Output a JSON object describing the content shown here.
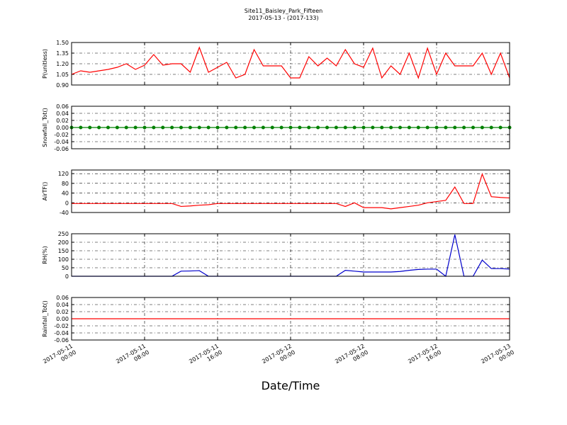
{
  "chart_data": {
    "type": "line",
    "title": "Site11_Baisley_Park_Fifteen",
    "subtitle": "2017-05-13 - (2017-133)",
    "x_label": "Date/Time",
    "x": [
      "2017-05-11 00:00",
      "2017-05-11 01:00",
      "2017-05-11 02:00",
      "2017-05-11 03:00",
      "2017-05-11 04:00",
      "2017-05-11 05:00",
      "2017-05-11 06:00",
      "2017-05-11 07:00",
      "2017-05-11 08:00",
      "2017-05-11 09:00",
      "2017-05-11 10:00",
      "2017-05-11 11:00",
      "2017-05-11 12:00",
      "2017-05-11 13:00",
      "2017-05-11 14:00",
      "2017-05-11 15:00",
      "2017-05-11 16:00",
      "2017-05-11 17:00",
      "2017-05-11 18:00",
      "2017-05-11 19:00",
      "2017-05-11 20:00",
      "2017-05-11 21:00",
      "2017-05-11 22:00",
      "2017-05-11 23:00",
      "2017-05-12 00:00",
      "2017-05-12 01:00",
      "2017-05-12 02:00",
      "2017-05-12 03:00",
      "2017-05-12 04:00",
      "2017-05-12 05:00",
      "2017-05-12 06:00",
      "2017-05-12 07:00",
      "2017-05-12 08:00",
      "2017-05-12 09:00",
      "2017-05-12 10:00",
      "2017-05-12 11:00",
      "2017-05-12 12:00",
      "2017-05-12 13:00",
      "2017-05-12 14:00",
      "2017-05-12 15:00",
      "2017-05-12 16:00",
      "2017-05-12 17:00",
      "2017-05-12 18:00",
      "2017-05-12 19:00",
      "2017-05-12 20:00",
      "2017-05-12 21:00",
      "2017-05-12 22:00",
      "2017-05-12 23:00",
      "2017-05-13 00:00"
    ],
    "xlim": [
      "2017-05-11 00:00",
      "2017-05-13 00:00"
    ],
    "xticks": [
      {
        "value": "2017-05-11 00:00",
        "label": "2017-05-11\n00:00"
      },
      {
        "value": "2017-05-11 08:00",
        "label": "2017-05-11\n08:00"
      },
      {
        "value": "2017-05-11 16:00",
        "label": "2017-05-11\n16:00"
      },
      {
        "value": "2017-05-12 00:00",
        "label": "2017-05-12\n00:00"
      },
      {
        "value": "2017-05-12 08:00",
        "label": "2017-05-12\n08:00"
      },
      {
        "value": "2017-05-12 16:00",
        "label": "2017-05-12\n16:00"
      },
      {
        "value": "2017-05-13 00:00",
        "label": "2017-05-13\n00:00"
      }
    ],
    "grid": true,
    "panels": [
      {
        "y_label": "P(unitless)",
        "color": "#ff0000",
        "marker": false,
        "ylim": [
          0.9,
          1.5
        ],
        "yticks": [
          {
            "value": 0.9,
            "label": "0.90"
          },
          {
            "value": 1.05,
            "label": "1.05"
          },
          {
            "value": 1.2,
            "label": "1.20"
          },
          {
            "value": 1.35,
            "label": "1.35"
          },
          {
            "value": 1.5,
            "label": "1.50"
          }
        ],
        "values": [
          1.05,
          1.1,
          1.08,
          1.1,
          1.12,
          1.15,
          1.2,
          1.12,
          1.18,
          1.33,
          1.18,
          1.2,
          1.2,
          1.08,
          1.43,
          1.08,
          1.15,
          1.22,
          1.0,
          1.05,
          1.4,
          1.17,
          1.17,
          1.17,
          1.0,
          1.0,
          1.3,
          1.17,
          1.28,
          1.17,
          1.4,
          1.2,
          1.15,
          1.42,
          1.0,
          1.17,
          1.05,
          1.35,
          1.0,
          1.42,
          1.05,
          1.35,
          1.17,
          1.17,
          1.17,
          1.35,
          1.05,
          1.35,
          1.0
        ]
      },
      {
        "y_label": "Snowfall_Tot()",
        "color": "#008000",
        "marker": true,
        "ylim": [
          -0.06,
          0.06
        ],
        "yticks": [
          {
            "value": -0.06,
            "label": "-0.06"
          },
          {
            "value": -0.04,
            "label": "-0.04"
          },
          {
            "value": -0.02,
            "label": "-0.02"
          },
          {
            "value": 0,
            "label": "0.00"
          },
          {
            "value": 0.02,
            "label": "0.02"
          },
          {
            "value": 0.04,
            "label": "0.04"
          },
          {
            "value": 0.06,
            "label": "0.06"
          }
        ],
        "values": [
          0,
          0,
          0,
          0,
          0,
          0,
          0,
          0,
          0,
          0,
          0,
          0,
          0,
          0,
          0,
          0,
          0,
          0,
          0,
          0,
          0,
          0,
          0,
          0,
          0,
          0,
          0,
          0,
          0,
          0,
          0,
          0,
          0,
          0,
          0,
          0,
          0,
          0,
          0,
          0,
          0,
          0,
          0,
          0,
          0,
          0,
          0,
          0,
          0
        ]
      },
      {
        "y_label": "AirTF()",
        "color": "#ff0000",
        "marker": false,
        "ylim": [
          -40,
          135
        ],
        "yticks": [
          -40,
          0,
          40,
          80,
          120
        ],
        "values": [
          -3,
          -3,
          -3,
          -3,
          -3,
          -3,
          -3,
          -3,
          -3,
          -3,
          -3,
          -3,
          -15,
          -13,
          -10,
          -8,
          -3,
          -3,
          -3,
          -3,
          -3,
          -3,
          -3,
          -3,
          -3,
          -3,
          -3,
          -3,
          -3,
          -3,
          -15,
          0,
          -20,
          -20,
          -20,
          -25,
          -20,
          -15,
          -10,
          0,
          5,
          10,
          65,
          -3,
          -3,
          118,
          25,
          22,
          20
        ]
      },
      {
        "y_label": "RH(%)",
        "color": "#0000cc",
        "marker": false,
        "ylim": [
          0,
          250
        ],
        "yticks": [
          0,
          50,
          100,
          150,
          200,
          250
        ],
        "values": [
          0,
          0,
          0,
          0,
          0,
          0,
          0,
          0,
          0,
          0,
          0,
          0,
          30,
          31,
          33,
          0,
          0,
          0,
          0,
          0,
          0,
          0,
          0,
          0,
          0,
          0,
          0,
          0,
          0,
          0,
          35,
          30,
          25,
          25,
          25,
          25,
          28,
          35,
          40,
          42,
          42,
          0,
          245,
          0,
          0,
          95,
          45,
          45,
          42
        ]
      },
      {
        "y_label": "Rainfall_Tot()",
        "color": "#ff0000",
        "marker": false,
        "ylim": [
          -0.06,
          0.06
        ],
        "yticks": [
          {
            "value": -0.06,
            "label": "-0.06"
          },
          {
            "value": -0.04,
            "label": "-0.04"
          },
          {
            "value": -0.02,
            "label": "-0.02"
          },
          {
            "value": 0,
            "label": "0.00"
          },
          {
            "value": 0.02,
            "label": "0.02"
          },
          {
            "value": 0.04,
            "label": "0.04"
          },
          {
            "value": 0.06,
            "label": "0.06"
          }
        ],
        "values": [
          0,
          0,
          0,
          0,
          0,
          0,
          0,
          0,
          0,
          0,
          0,
          0,
          0,
          0,
          0,
          0,
          0,
          0,
          0,
          0,
          0,
          0,
          0,
          0,
          0,
          0,
          0,
          0,
          0,
          0,
          0,
          0,
          0,
          0,
          0,
          0,
          0,
          0,
          0,
          0,
          0,
          0,
          0,
          0,
          0,
          0,
          0,
          0,
          0
        ]
      }
    ]
  }
}
